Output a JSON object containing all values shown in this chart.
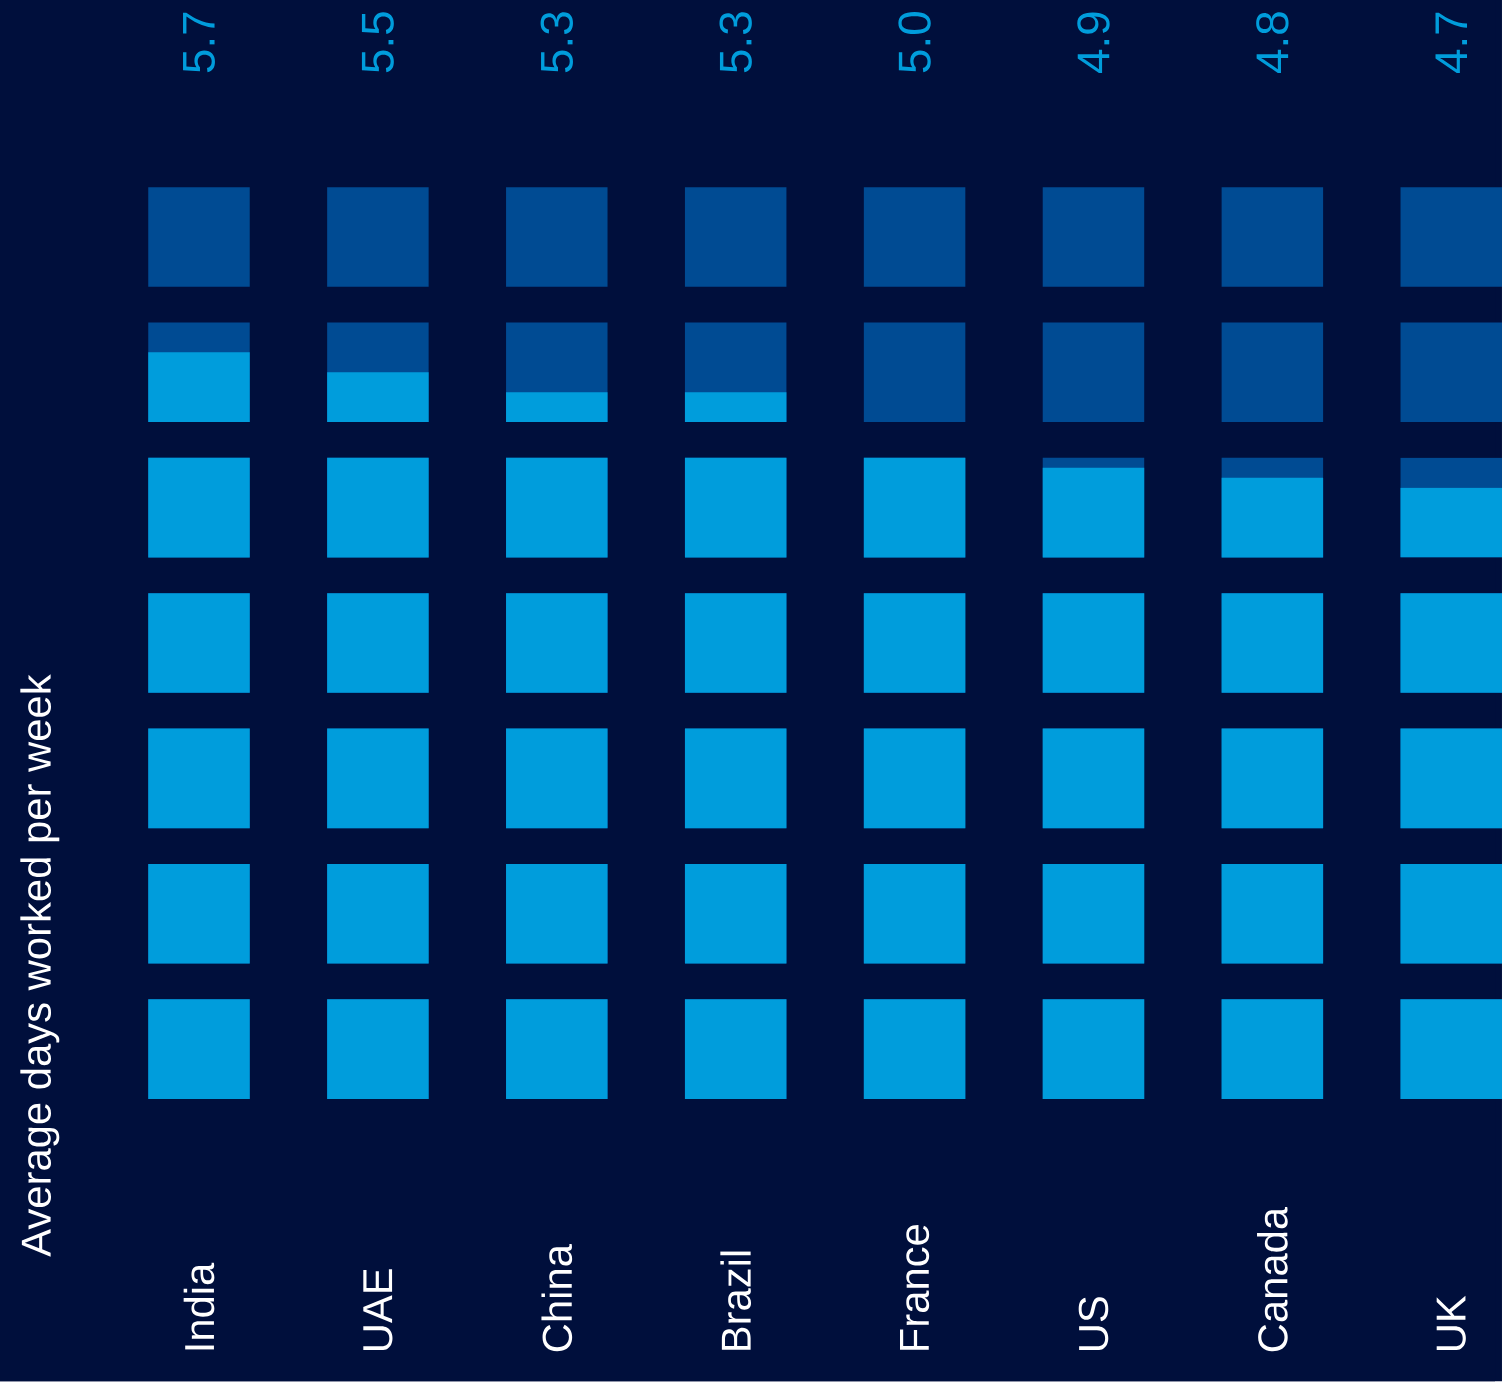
{
  "chart_data": {
    "type": "other",
    "ylabel": "Average days worked per week",
    "categories": [
      "India",
      "UAE",
      "China",
      "Brazil",
      "France",
      "US",
      "Canada",
      "UK"
    ],
    "values": [
      5.7,
      5.5,
      5.3,
      5.3,
      5.0,
      4.9,
      4.8,
      4.7
    ],
    "value_labels": [
      "5.7",
      "5.5",
      "5.3",
      "5.3",
      "5.0",
      "4.9",
      "4.8",
      "4.7"
    ],
    "color": "#009ddc"
  }
}
